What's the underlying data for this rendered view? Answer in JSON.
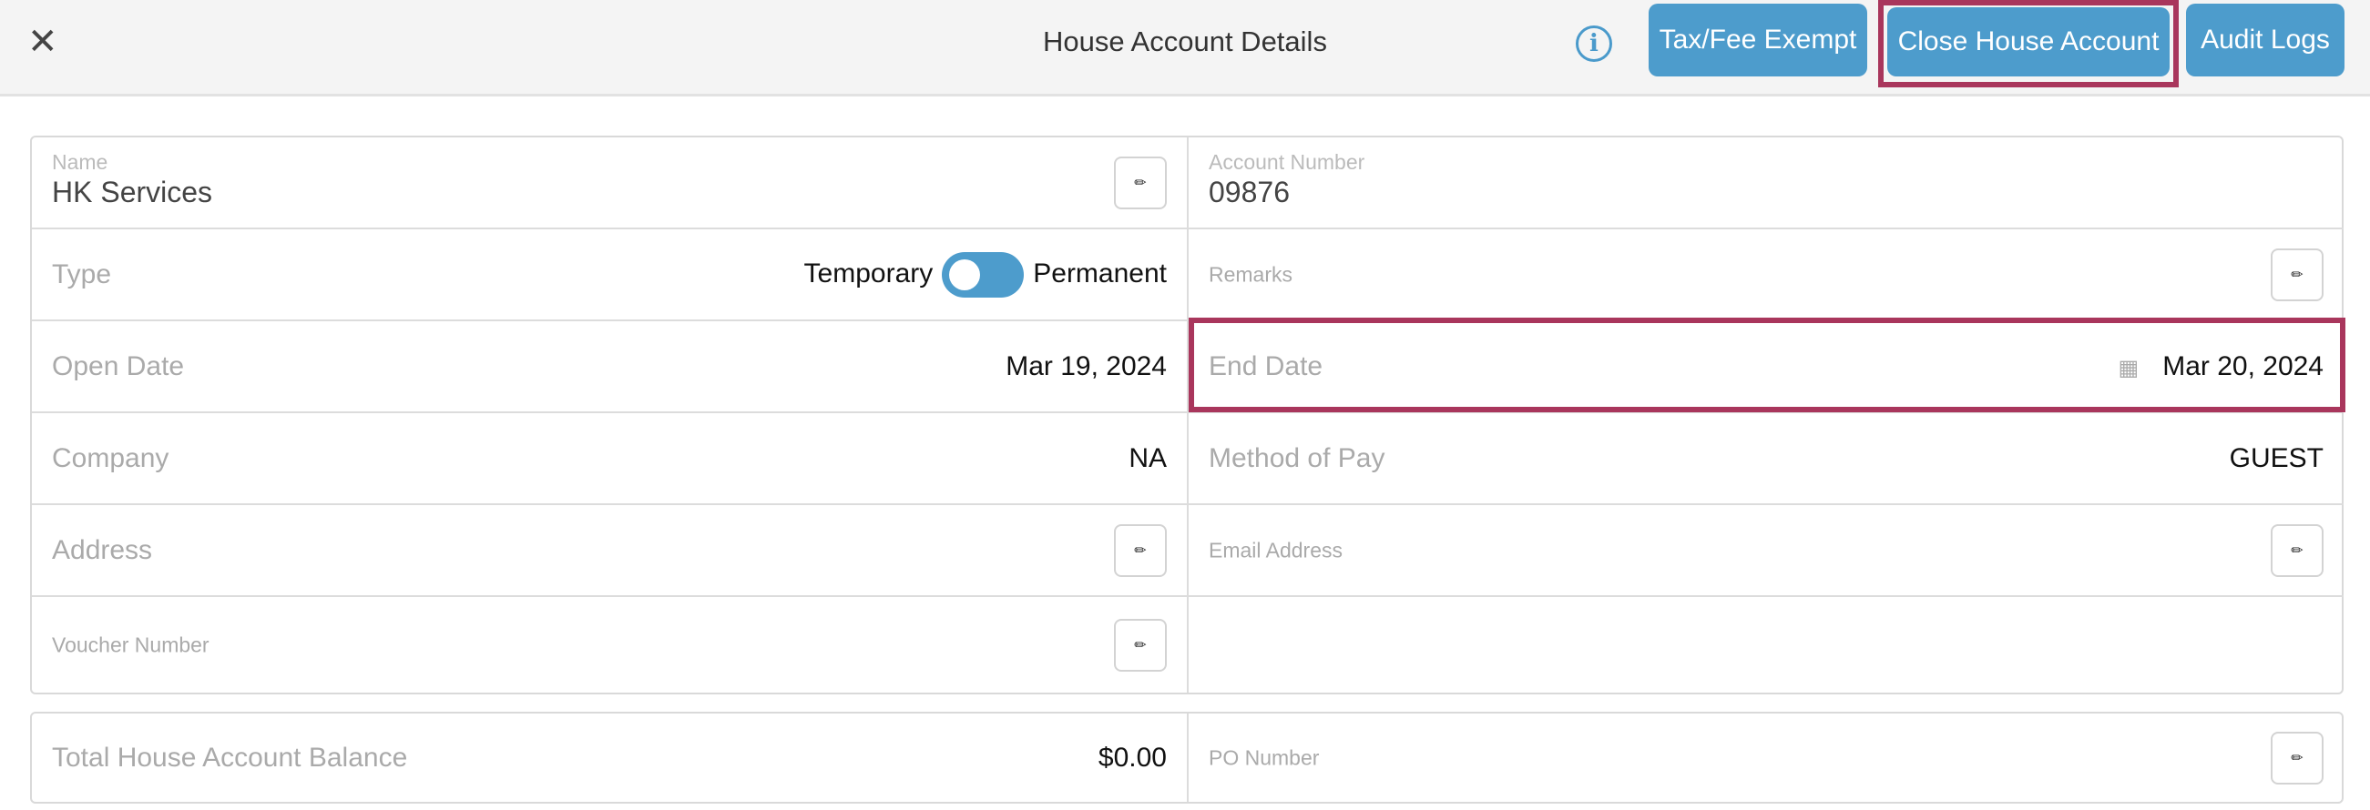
{
  "header": {
    "title": "House Account Details",
    "close_icon": "close-icon",
    "info_icon": "info-icon",
    "buttons": {
      "tax_fee_exempt": "Tax/Fee Exempt",
      "close_house_account": "Close House Account",
      "audit_logs": "Audit Logs"
    }
  },
  "fields": {
    "name": {
      "label": "Name",
      "value": "HK Services"
    },
    "account_number": {
      "label": "Account Number",
      "value": "09876"
    },
    "type": {
      "label": "Type",
      "option_left": "Temporary",
      "option_right": "Permanent",
      "selected": "Temporary"
    },
    "remarks": {
      "label": "Remarks"
    },
    "open_date": {
      "label": "Open Date",
      "value": "Mar 19, 2024"
    },
    "end_date": {
      "label": "End Date",
      "value": "Mar 20, 2024"
    },
    "company": {
      "label": "Company",
      "value": "NA"
    },
    "method_of_pay": {
      "label": "Method of Pay",
      "value": "GUEST"
    },
    "address": {
      "label": "Address"
    },
    "email_address": {
      "label": "Email Address"
    },
    "voucher_number": {
      "label": "Voucher Number"
    },
    "total_balance": {
      "label": "Total House Account Balance",
      "value": "$0.00"
    },
    "po_number": {
      "label": "PO Number"
    }
  },
  "colors": {
    "accent": "#4d9ccc",
    "highlight": "#a9365c"
  }
}
